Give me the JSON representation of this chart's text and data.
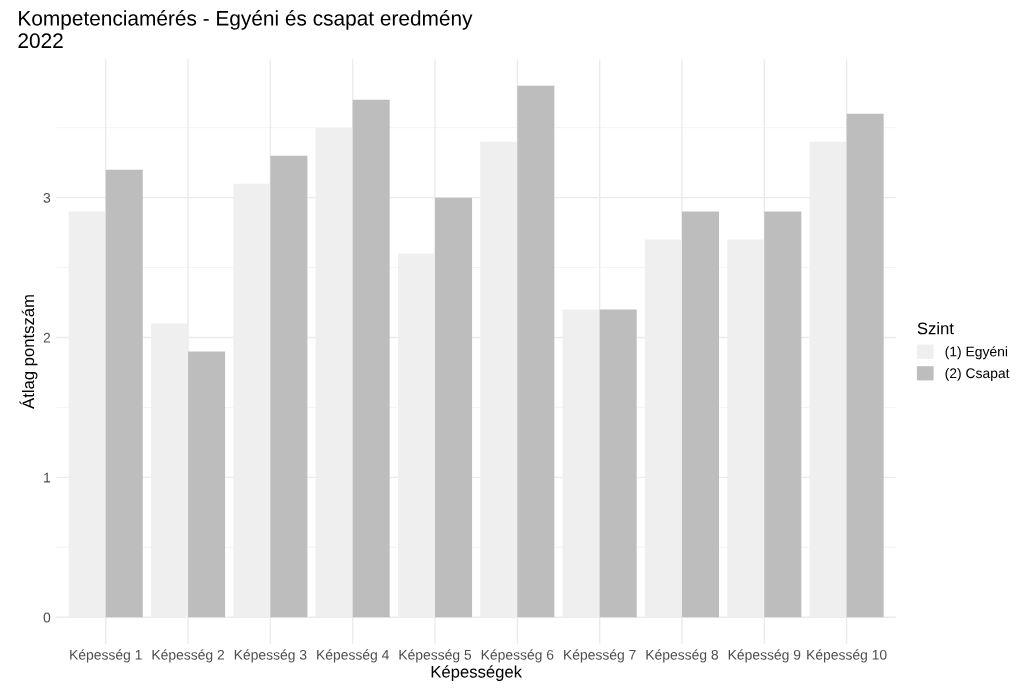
{
  "chart_data": {
    "type": "bar",
    "title": "Kompetenciamérés - Egyéni és csapat eredmény\n2022",
    "xlabel": "Képességek",
    "ylabel": "Átlag pontszám",
    "legend_title": "Szint",
    "categories": [
      "Képesség 1",
      "Képesség 2",
      "Képesség 3",
      "Képesség 4",
      "Képesség 5",
      "Képesség 6",
      "Képesség 7",
      "Képesség 8",
      "Képesség 9",
      "Képesség 10"
    ],
    "series": [
      {
        "name": "(1) Egyéni",
        "color": "#efefef",
        "values": [
          2.9,
          2.1,
          3.1,
          3.5,
          2.6,
          3.4,
          2.2,
          2.7,
          2.7,
          3.4
        ]
      },
      {
        "name": "(2) Csapat",
        "color": "#bdbdbd",
        "values": [
          3.2,
          1.9,
          3.3,
          3.7,
          3.0,
          3.8,
          2.2,
          2.9,
          2.9,
          3.6
        ]
      }
    ],
    "ylim": [
      -0.19,
      3.99
    ],
    "yticks": [
      0,
      1,
      2,
      3
    ],
    "grid": true,
    "legend": "right"
  }
}
